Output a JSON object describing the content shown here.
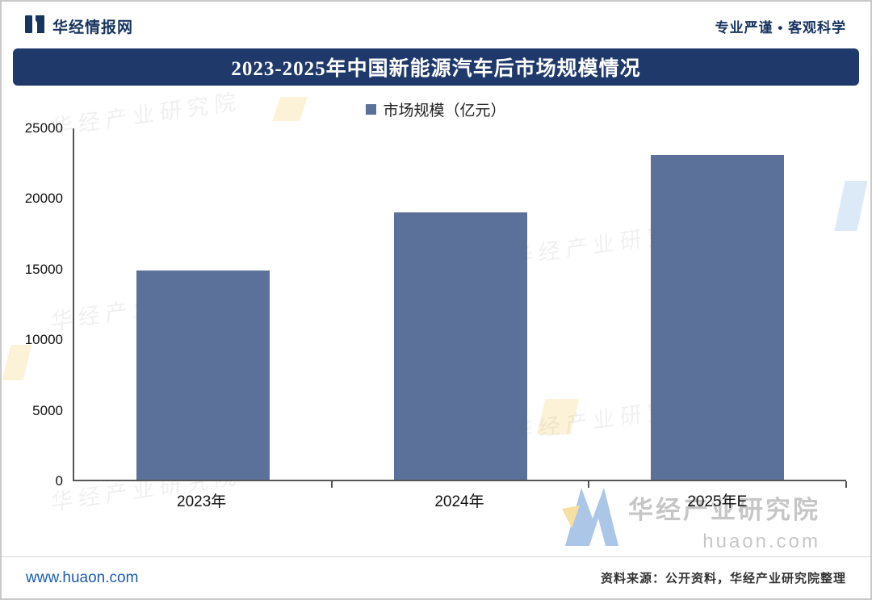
{
  "header": {
    "brand": "华经情报网",
    "tagline": "专业严谨 • 客观科学"
  },
  "title": "2023-2025年中国新能源汽车后市场规模情况",
  "legend": {
    "label": "市场规模（亿元）"
  },
  "chart_data": {
    "type": "bar",
    "categories": [
      "2023年",
      "2024年",
      "2025年E"
    ],
    "values": [
      14900,
      19000,
      23100
    ],
    "title": "2023-2025年中国新能源汽车后市场规模情况",
    "xlabel": "",
    "ylabel": "市场规模（亿元）",
    "ylim": [
      0,
      25000
    ],
    "yticks": [
      0,
      5000,
      10000,
      15000,
      20000,
      25000
    ],
    "legend": [
      "市场规模（亿元）"
    ],
    "legend_position": "top",
    "grid": false,
    "bar_color": "#5b7199"
  },
  "footer": {
    "website": "www.huaon.com",
    "source": "资料来源：公开资料，华经产业研究院整理"
  },
  "watermark": {
    "text": "华经产业研究院",
    "site": "huaon.com"
  },
  "colors": {
    "banner": "#20396b",
    "bar": "#5b7199",
    "link": "#1a5cb0",
    "brand_navy": "#17345f"
  }
}
